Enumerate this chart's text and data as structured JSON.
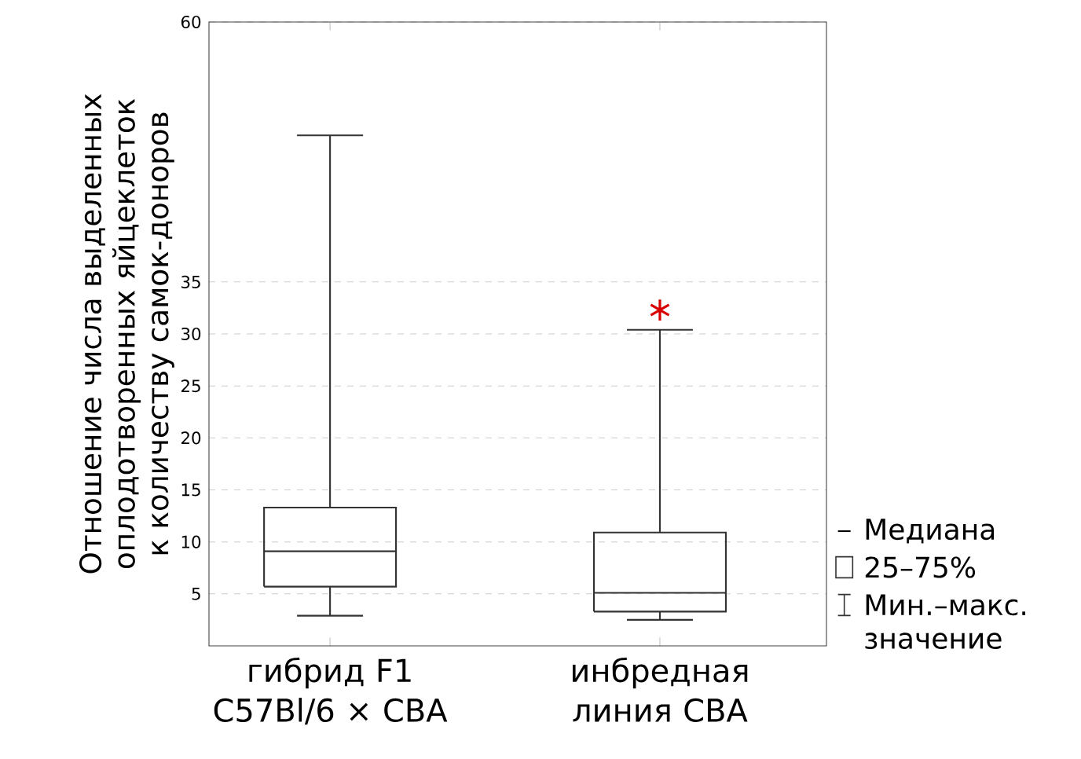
{
  "chart_data": {
    "type": "box",
    "ylabel": "Отношение числа выделенных оплодотворенных яйцеклеток к количеству самок-доноров",
    "categories": [
      "гибрид F1 C57Bl/6 × CBA",
      "инбредная линия CBA"
    ],
    "boxes": [
      {
        "low": 2.9,
        "q1": 5.7,
        "median": 9.1,
        "q3": 13.3,
        "high": 49.1
      },
      {
        "low": 2.5,
        "q1": 3.3,
        "median": 5.1,
        "q3": 10.9,
        "high": 30.4,
        "outliers": [
          32.3
        ]
      }
    ],
    "ylim": [
      0,
      60
    ],
    "yticks": [
      5,
      10,
      15,
      20,
      25,
      30,
      35,
      60
    ],
    "grid": "y",
    "annotations": [
      "Медиана",
      "25–75%",
      "Мин.–макс. значение"
    ]
  }
}
